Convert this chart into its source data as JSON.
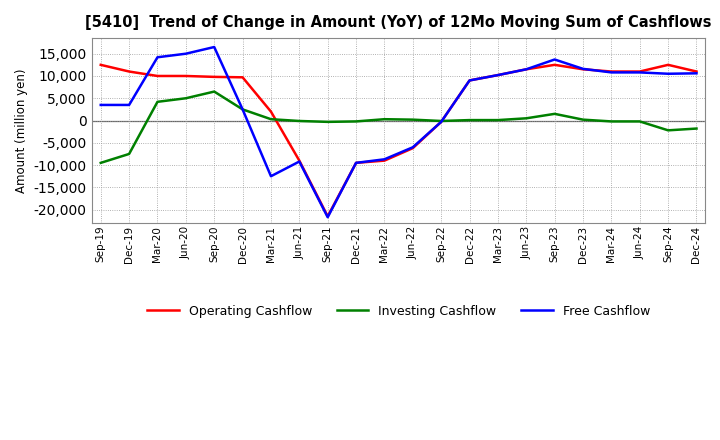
{
  "title": "[5410]  Trend of Change in Amount (YoY) of 12Mo Moving Sum of Cashflows",
  "xlabel": "",
  "ylabel": "Amount (million yen)",
  "x_labels": [
    "Sep-19",
    "Dec-19",
    "Mar-20",
    "Jun-20",
    "Sep-20",
    "Dec-20",
    "Mar-21",
    "Jun-21",
    "Sep-21",
    "Dec-21",
    "Mar-22",
    "Jun-22",
    "Sep-22",
    "Dec-22",
    "Mar-23",
    "Jun-23",
    "Sep-23",
    "Dec-23",
    "Mar-24",
    "Jun-24",
    "Sep-24",
    "Dec-24"
  ],
  "operating": [
    12500,
    11000,
    10000,
    10000,
    9800,
    9700,
    2000,
    -9000,
    -21500,
    -9500,
    -9000,
    -6200,
    -300,
    9000,
    10200,
    11500,
    12500,
    11500,
    11000,
    11000,
    12500,
    11000
  ],
  "investing": [
    -9500,
    -7500,
    4200,
    5000,
    6500,
    2500,
    300,
    -100,
    -300,
    -200,
    300,
    200,
    -100,
    100,
    100,
    500,
    1500,
    200,
    -200,
    -200,
    -2200,
    -1800
  ],
  "free": [
    3500,
    3500,
    14200,
    15000,
    16500,
    2500,
    -12500,
    -9200,
    -21700,
    -9500,
    -8700,
    -6000,
    -300,
    9000,
    10200,
    11500,
    13700,
    11600,
    10800,
    10800,
    10500,
    10600
  ],
  "ylim": [
    -23000,
    18500
  ],
  "yticks": [
    -20000,
    -15000,
    -10000,
    -5000,
    0,
    5000,
    10000,
    15000
  ],
  "operating_color": "#ff0000",
  "investing_color": "#008000",
  "free_color": "#0000ff",
  "background_color": "#ffffff",
  "grid_color": "#999999",
  "linewidth": 1.8
}
